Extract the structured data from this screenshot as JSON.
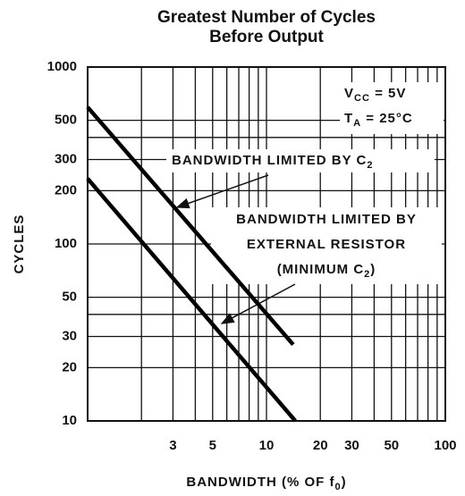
{
  "chart_data": {
    "type": "line",
    "title": [
      "Greatest Number of Cycles",
      "Before Output"
    ],
    "ylabel": "CYCLES",
    "xlabel": {
      "text": "BANDWIDTH (% OF f",
      "sub": "0",
      "after": ")"
    },
    "log_x": true,
    "log_y": true,
    "grid": true,
    "xlim": [
      1,
      100
    ],
    "ylim": [
      10,
      1000
    ],
    "xticks": [
      3,
      5,
      10,
      20,
      30,
      50,
      100
    ],
    "yticks": [
      10,
      20,
      30,
      50,
      100,
      200,
      300,
      500,
      1000
    ],
    "xminor": [
      2,
      4,
      6,
      7,
      8,
      9,
      40,
      60,
      70,
      80,
      90
    ],
    "yminor": [
      40,
      400
    ],
    "series": [
      {
        "color": "#000000",
        "x": [
          1,
          14.1
        ],
        "values": [
          593,
          27
        ]
      },
      {
        "color": "#000000",
        "x": [
          1,
          14.5
        ],
        "values": [
          234,
          10
        ]
      }
    ],
    "conditions": [
      {
        "text": "V",
        "sub": "CC",
        "after": " = 5V"
      },
      {
        "text": "T",
        "sub": "A",
        "after": " = 25°C"
      }
    ],
    "annotations": [
      {
        "text": "BANDWIDTH LIMITED BY C",
        "sub": "2"
      },
      {
        "text": "BANDWIDTH LIMITED BY"
      },
      {
        "text": "EXTERNAL RESISTOR"
      },
      {
        "text": "(MINIMUM C",
        "sub": "2",
        "after": ")"
      }
    ]
  }
}
